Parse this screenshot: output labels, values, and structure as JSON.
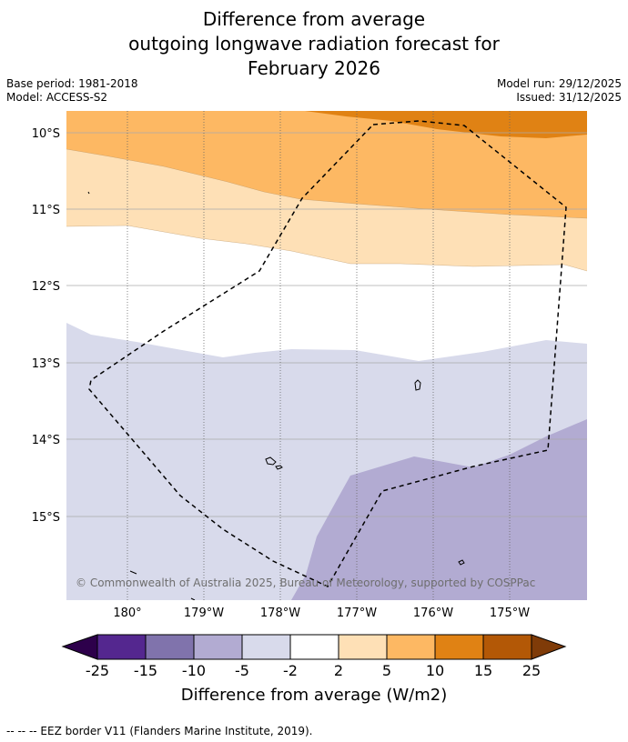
{
  "title": {
    "line1": "Difference from average",
    "line2": "outgoing longwave radiation forecast for",
    "line3": "February 2026"
  },
  "meta": {
    "base_period": "Base period: 1981-2018",
    "model": "Model: ACCESS-S2",
    "model_run": "Model run: 29/12/2025",
    "issued": "Issued: 31/12/2025"
  },
  "map": {
    "lat_labels": [
      "10°S",
      "11°S",
      "12°S",
      "13°S",
      "14°S",
      "15°S"
    ],
    "lon_labels": [
      "180°",
      "179°W",
      "178°W",
      "177°W",
      "176°W",
      "175°W"
    ],
    "copyright": "© Commonwealth of Australia 2025, Bureau of Meteorology, supported by COSPPac"
  },
  "colorbar": {
    "ticks": [
      "-25",
      "-15",
      "-10",
      "-5",
      "-2",
      "2",
      "5",
      "10",
      "15",
      "25"
    ],
    "colors": [
      "#54278f",
      "#8073ac",
      "#b2abd2",
      "#d8daeb",
      "#ffffff",
      "#fee0b6",
      "#fdb863",
      "#e08214",
      "#b35806"
    ],
    "under_color": "#2d004b",
    "over_color": "#7f3b08",
    "label": "Difference from average (W/m2)"
  },
  "footer": "--  --  -- EEZ border V11 (Flanders Marine Institute, 2019)."
}
